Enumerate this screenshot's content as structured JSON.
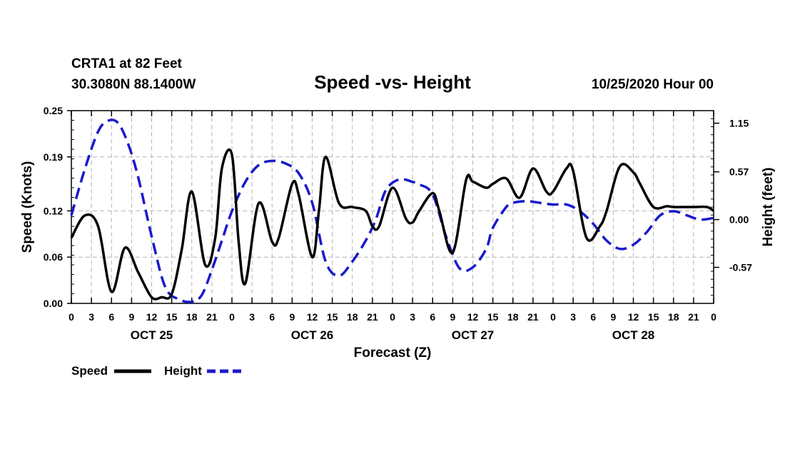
{
  "header": {
    "station": "CRTA1 at 82 Feet",
    "location": "30.3080N 88.1400W",
    "title": "Speed -vs- Height",
    "datetime": "10/25/2020 Hour 00"
  },
  "colors": {
    "speed": "#000000",
    "height": "#1a1acc",
    "grid": "#b4b4b4"
  },
  "chart_data": {
    "type": "line",
    "title": "Speed -vs- Height",
    "xlabel": "Forecast (Z)",
    "ylabel": "Speed (Knots)",
    "y2label": "Height (feet)",
    "x_hours_range": [
      0,
      96
    ],
    "ylim": [
      0,
      0.25
    ],
    "y2lim": [
      -1.0,
      1.3
    ],
    "y_ticks": [
      "0.00",
      "0.06",
      "0.12",
      "0.19",
      "0.25"
    ],
    "y2_ticks": [
      "-0.57",
      "0.00",
      "0.57",
      "1.15"
    ],
    "x_tick_labels": [
      "0",
      "3",
      "6",
      "9",
      "12",
      "15",
      "18",
      "21",
      "0",
      "3",
      "6",
      "9",
      "12",
      "15",
      "18",
      "21",
      "0",
      "3",
      "6",
      "9",
      "12",
      "15",
      "18",
      "21",
      "0",
      "3",
      "6",
      "9",
      "12",
      "15",
      "18",
      "21",
      "0"
    ],
    "day_labels": [
      "OCT 25",
      "OCT 26",
      "OCT 27",
      "OCT 28"
    ],
    "grid": true,
    "series": [
      {
        "name": "Speed",
        "axis": "left",
        "x": [
          0,
          2,
          4,
          6,
          8,
          10,
          12,
          13.5,
          15,
          16.5,
          18,
          20,
          21.5,
          22.5,
          24,
          25,
          26,
          28,
          30,
          31,
          33,
          34,
          36,
          37,
          38,
          40,
          42,
          44,
          45,
          46,
          48,
          50,
          51,
          52,
          54,
          55,
          57,
          59,
          60,
          62,
          63,
          65,
          67,
          69,
          71,
          72,
          74,
          75,
          77,
          79,
          80,
          82,
          84,
          85,
          87,
          89,
          90,
          92,
          93,
          95,
          96
        ],
        "values": [
          0.085,
          0.114,
          0.1,
          0.015,
          0.072,
          0.04,
          0.008,
          0.008,
          0.012,
          0.07,
          0.145,
          0.05,
          0.085,
          0.175,
          0.193,
          0.08,
          0.026,
          0.13,
          0.08,
          0.085,
          0.155,
          0.14,
          0.06,
          0.12,
          0.19,
          0.13,
          0.125,
          0.12,
          0.1,
          0.1,
          0.15,
          0.11,
          0.105,
          0.12,
          0.143,
          0.12,
          0.066,
          0.16,
          0.158,
          0.15,
          0.155,
          0.162,
          0.137,
          0.175,
          0.145,
          0.145,
          0.175,
          0.172,
          0.085,
          0.1,
          0.12,
          0.178,
          0.17,
          0.155,
          0.125,
          0.126,
          0.125,
          0.125,
          0.125,
          0.125,
          0.12
        ]
      },
      {
        "name": "Height",
        "axis": "right",
        "x": [
          0,
          2,
          4,
          5.5,
          7,
          8.5,
          10,
          12,
          14,
          16,
          18,
          19.5,
          21,
          22.5,
          24,
          26,
          28,
          30,
          32,
          34,
          36,
          38,
          40,
          42,
          44,
          45.5,
          47,
          49,
          51,
          52,
          54,
          56,
          58,
          60,
          62,
          63,
          65,
          66,
          68,
          70,
          72,
          74,
          76,
          78,
          80,
          82,
          84,
          86,
          88,
          90,
          92,
          94,
          96
        ],
        "values": [
          0.05,
          0.6,
          1.05,
          1.18,
          1.15,
          0.9,
          0.5,
          -0.2,
          -0.8,
          -0.95,
          -0.98,
          -0.9,
          -0.6,
          -0.25,
          0.1,
          0.45,
          0.65,
          0.7,
          0.67,
          0.55,
          0.2,
          -0.5,
          -0.67,
          -0.5,
          -0.25,
          0.0,
          0.35,
          0.48,
          0.45,
          0.42,
          0.3,
          -0.2,
          -0.58,
          -0.57,
          -0.35,
          -0.1,
          0.15,
          0.2,
          0.22,
          0.2,
          0.18,
          0.18,
          0.1,
          -0.05,
          -0.25,
          -0.35,
          -0.3,
          -0.15,
          0.05,
          0.1,
          0.05,
          0.0,
          0.02
        ]
      }
    ],
    "legend": [
      {
        "label": "Speed",
        "style": "solid"
      },
      {
        "label": "Height",
        "style": "dashed"
      }
    ]
  }
}
